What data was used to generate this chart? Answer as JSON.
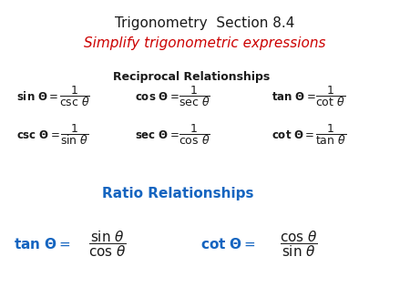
{
  "title1": "Trigonometry  Section 8.4",
  "title2": "Simplify trigonometric expressions",
  "title1_color": "#000000",
  "title2_color": "#cc0000",
  "reciprocal_header": "Reciprocal Relationships",
  "ratio_header": "Ratio Relationships",
  "ratio_header_color": "#1565c0",
  "background_color": "#ffffff",
  "black": "#1a1a1a",
  "blue": "#1565c0"
}
